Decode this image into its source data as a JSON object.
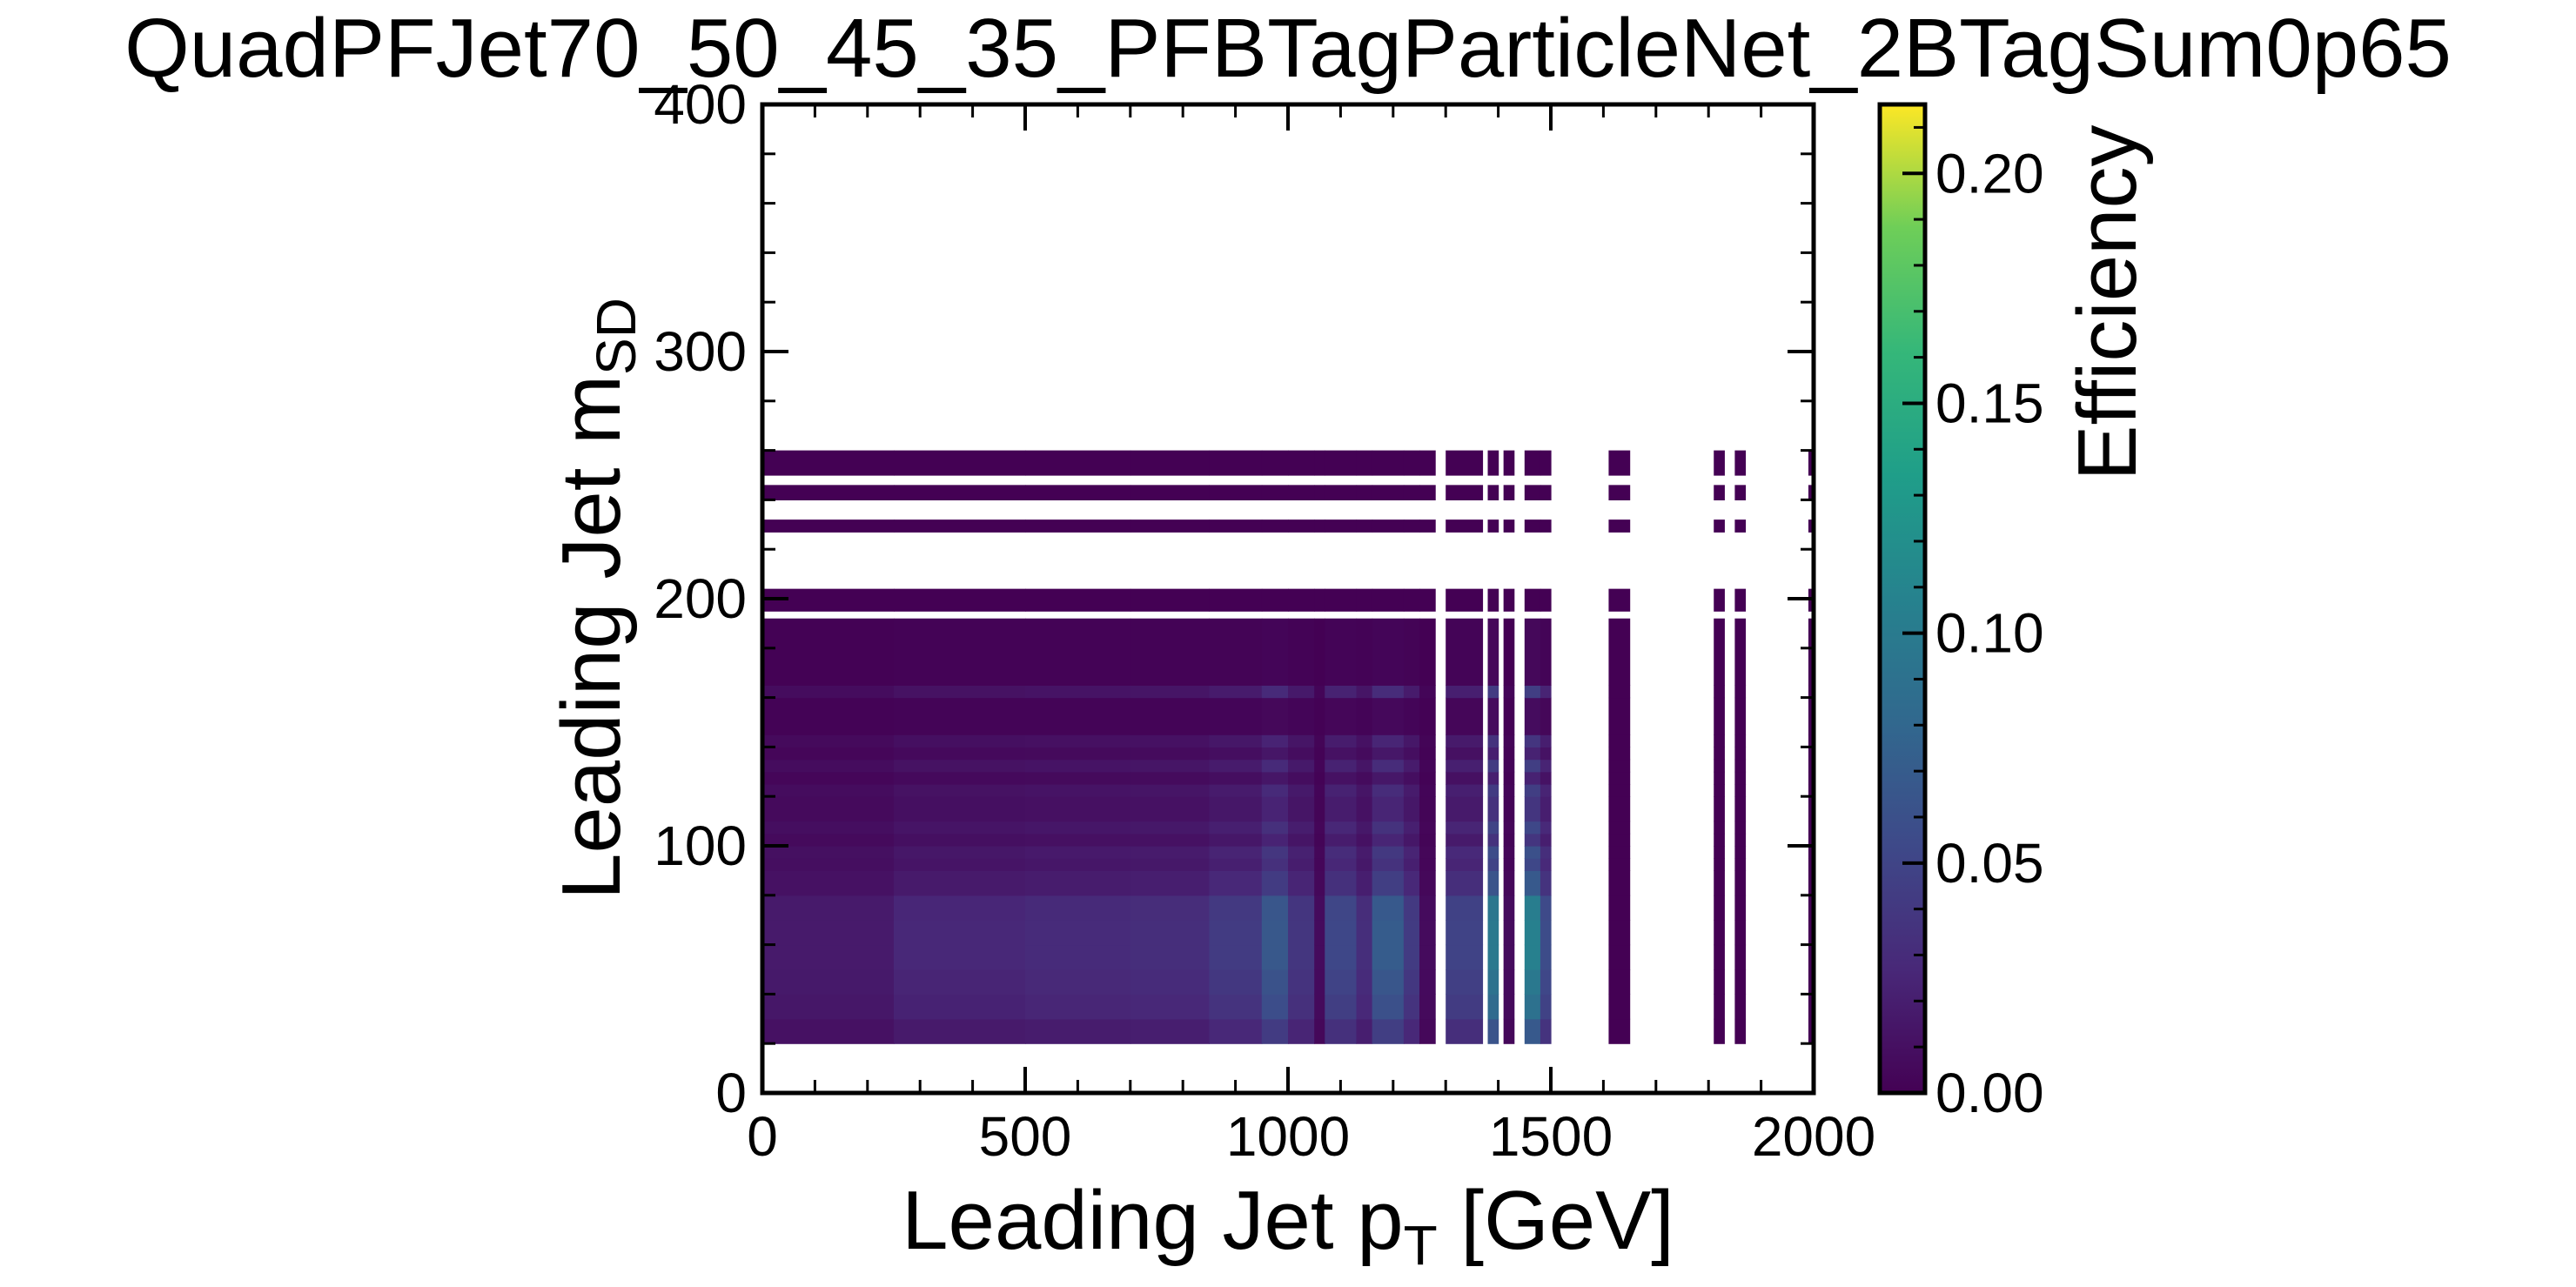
{
  "chart_data": {
    "type": "heatmap",
    "title": "QuadPFJet70_50_45_35_PFBTagParticleNet_2BTagSum0p65",
    "xlabel": {
      "main": "Leading Jet p",
      "sub": "T",
      "unit": " [GeV]"
    },
    "ylabel": {
      "main": "Leading Jet m",
      "sub": "SD"
    },
    "xlim": [
      0,
      2000
    ],
    "ylim": [
      0,
      400
    ],
    "x_ticks": [
      0,
      500,
      1000,
      1500,
      2000
    ],
    "y_ticks": [
      0,
      100,
      200,
      300,
      400
    ],
    "x_tick_labels": [
      "0",
      "500",
      "1000",
      "1500",
      "2000"
    ],
    "y_tick_labels": [
      "0",
      "100",
      "200",
      "300",
      "400"
    ],
    "colorbar": {
      "label": "Efficiency",
      "range": [
        0.0,
        0.215
      ],
      "ticks": [
        0.0,
        0.05,
        0.1,
        0.15,
        0.2
      ],
      "tick_labels": [
        "0.00",
        "0.05",
        "0.10",
        "0.15",
        "0.20"
      ],
      "colormap": "viridis"
    },
    "grid": false,
    "columns": [
      {
        "x0": 0,
        "x1": 250,
        "scale": 0.25
      },
      {
        "x0": 250,
        "x1": 500,
        "scale": 0.38
      },
      {
        "x0": 500,
        "x1": 700,
        "scale": 0.42
      },
      {
        "x0": 700,
        "x1": 850,
        "scale": 0.45
      },
      {
        "x0": 850,
        "x1": 950,
        "scale": 0.6
      },
      {
        "x0": 950,
        "x1": 1000,
        "scale": 0.95
      },
      {
        "x0": 1000,
        "x1": 1050,
        "scale": 0.55
      },
      {
        "x0": 1050,
        "x1": 1070,
        "scale": 0.1
      },
      {
        "x0": 1070,
        "x1": 1130,
        "scale": 0.75
      },
      {
        "x0": 1130,
        "x1": 1160,
        "scale": 0.45
      },
      {
        "x0": 1160,
        "x1": 1220,
        "scale": 1.0
      },
      {
        "x0": 1220,
        "x1": 1250,
        "scale": 0.6
      },
      {
        "x0": 1250,
        "x1": 1280,
        "scale": 0.1
      },
      {
        "x0": 1300,
        "x1": 1370,
        "scale": 0.7
      },
      {
        "x0": 1380,
        "x1": 1400,
        "scale": 1.4
      },
      {
        "x0": 1410,
        "x1": 1430,
        "scale": 0.1
      },
      {
        "x0": 1450,
        "x1": 1480,
        "scale": 1.5
      },
      {
        "x0": 1480,
        "x1": 1500,
        "scale": 0.8
      },
      {
        "x0": 1610,
        "x1": 1650,
        "scale": 0.0
      },
      {
        "x0": 1810,
        "x1": 1830,
        "scale": 0.0
      },
      {
        "x0": 1850,
        "x1": 1870,
        "scale": 0.0
      },
      {
        "x0": 1990,
        "x1": 2000,
        "scale": 0.0
      }
    ],
    "mass_bins": [
      {
        "y0": 20,
        "y1": 30,
        "eff": 0.045
      },
      {
        "y0": 30,
        "y1": 40,
        "eff": 0.06
      },
      {
        "y0": 40,
        "y1": 50,
        "eff": 0.065
      },
      {
        "y0": 50,
        "y1": 60,
        "eff": 0.07
      },
      {
        "y0": 60,
        "y1": 70,
        "eff": 0.07
      },
      {
        "y0": 70,
        "y1": 80,
        "eff": 0.068
      },
      {
        "y0": 80,
        "y1": 90,
        "eff": 0.045
      },
      {
        "y0": 90,
        "y1": 95,
        "eff": 0.035
      },
      {
        "y0": 95,
        "y1": 100,
        "eff": 0.04
      },
      {
        "y0": 100,
        "y1": 105,
        "eff": 0.025
      },
      {
        "y0": 105,
        "y1": 110,
        "eff": 0.035
      },
      {
        "y0": 110,
        "y1": 120,
        "eff": 0.025
      },
      {
        "y0": 120,
        "y1": 125,
        "eff": 0.03
      },
      {
        "y0": 125,
        "y1": 130,
        "eff": 0.015
      },
      {
        "y0": 130,
        "y1": 135,
        "eff": 0.03
      },
      {
        "y0": 135,
        "y1": 140,
        "eff": 0.015
      },
      {
        "y0": 140,
        "y1": 145,
        "eff": 0.025
      },
      {
        "y0": 145,
        "y1": 160,
        "eff": 0.005
      },
      {
        "y0": 160,
        "y1": 165,
        "eff": 0.03
      },
      {
        "y0": 165,
        "y1": 192,
        "eff": 0.003
      },
      {
        "y0": 195,
        "y1": 204,
        "eff": 0.0
      },
      {
        "y0": 227,
        "y1": 232,
        "eff": 0.0
      },
      {
        "y0": 240,
        "y1": 246,
        "eff": 0.0
      },
      {
        "y0": 250,
        "y1": 260,
        "eff": 0.0
      }
    ]
  }
}
